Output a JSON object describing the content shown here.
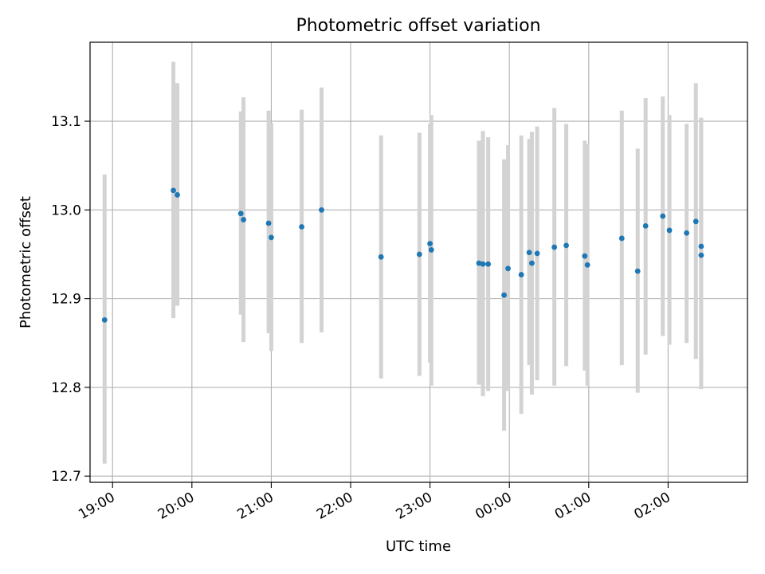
{
  "chart_data": {
    "type": "scatter",
    "title": "Photometric offset variation",
    "xlabel": "UTC time",
    "ylabel": "Photometric offset",
    "x_ticks": [
      "19:00",
      "20:00",
      "21:00",
      "22:00",
      "23:00",
      "00:00",
      "01:00",
      "02:00"
    ],
    "y_ticks": [
      "12.7",
      "12.8",
      "12.9",
      "13.0",
      "13.1"
    ],
    "y_tick_values": [
      12.7,
      12.8,
      12.9,
      13.0,
      13.1
    ],
    "xlim": [
      "18:43",
      "03:00"
    ],
    "ylim": [
      12.693,
      13.189
    ],
    "grid": true,
    "point_color": "#1f77b4",
    "errorbar_color": "#d3d3d3",
    "points": [
      {
        "x": "18:54",
        "y": 12.876,
        "low": 12.714,
        "high": 13.04
      },
      {
        "x": "19:46",
        "y": 13.022,
        "low": 12.878,
        "high": 13.167
      },
      {
        "x": "19:49",
        "y": 13.017,
        "low": 12.892,
        "high": 13.143
      },
      {
        "x": "20:37",
        "y": 12.996,
        "low": 12.882,
        "high": 13.111
      },
      {
        "x": "20:39",
        "y": 12.989,
        "low": 12.851,
        "high": 13.127
      },
      {
        "x": "20:58",
        "y": 12.985,
        "low": 12.861,
        "high": 13.112
      },
      {
        "x": "21:00",
        "y": 12.969,
        "low": 12.841,
        "high": 13.098
      },
      {
        "x": "21:23",
        "y": 12.981,
        "low": 12.85,
        "high": 13.113
      },
      {
        "x": "21:38",
        "y": 13.0,
        "low": 12.862,
        "high": 13.138
      },
      {
        "x": "22:23",
        "y": 12.947,
        "low": 12.81,
        "high": 13.084
      },
      {
        "x": "22:52",
        "y": 12.95,
        "low": 12.813,
        "high": 13.087
      },
      {
        "x": "23:00",
        "y": 12.962,
        "low": 12.828,
        "high": 13.097
      },
      {
        "x": "23:01",
        "y": 12.955,
        "low": 12.802,
        "high": 13.107
      },
      {
        "x": "23:37",
        "y": 12.94,
        "low": 12.803,
        "high": 13.078
      },
      {
        "x": "23:40",
        "y": 12.939,
        "low": 12.79,
        "high": 13.089
      },
      {
        "x": "23:44",
        "y": 12.939,
        "low": 12.796,
        "high": 13.082
      },
      {
        "x": "23:56",
        "y": 12.904,
        "low": 12.751,
        "high": 13.057
      },
      {
        "x": "23:59",
        "y": 12.934,
        "low": 12.796,
        "high": 13.073
      },
      {
        "x": "00:09",
        "y": 12.927,
        "low": 12.77,
        "high": 13.084
      },
      {
        "x": "00:15",
        "y": 12.952,
        "low": 12.825,
        "high": 13.08
      },
      {
        "x": "00:17",
        "y": 12.94,
        "low": 12.792,
        "high": 13.088
      },
      {
        "x": "00:21",
        "y": 12.951,
        "low": 12.808,
        "high": 13.094
      },
      {
        "x": "00:34",
        "y": 12.958,
        "low": 12.802,
        "high": 13.115
      },
      {
        "x": "00:43",
        "y": 12.96,
        "low": 12.824,
        "high": 13.097
      },
      {
        "x": "00:57",
        "y": 12.948,
        "low": 12.819,
        "high": 13.078
      },
      {
        "x": "00:59",
        "y": 12.938,
        "low": 12.802,
        "high": 13.074
      },
      {
        "x": "01:25",
        "y": 12.968,
        "low": 12.825,
        "high": 13.112
      },
      {
        "x": "01:37",
        "y": 12.931,
        "low": 12.794,
        "high": 13.069
      },
      {
        "x": "01:43",
        "y": 12.982,
        "low": 12.837,
        "high": 13.126
      },
      {
        "x": "01:56",
        "y": 12.993,
        "low": 12.858,
        "high": 13.128
      },
      {
        "x": "02:01",
        "y": 12.977,
        "low": 12.848,
        "high": 13.107
      },
      {
        "x": "02:14",
        "y": 12.974,
        "low": 12.85,
        "high": 13.097
      },
      {
        "x": "02:21",
        "y": 12.987,
        "low": 12.832,
        "high": 13.143
      },
      {
        "x": "02:25",
        "y": 12.959,
        "low": 12.816,
        "high": 13.103
      },
      {
        "x": "02:25",
        "y": 12.949,
        "low": 12.798,
        "high": 13.104
      }
    ]
  }
}
